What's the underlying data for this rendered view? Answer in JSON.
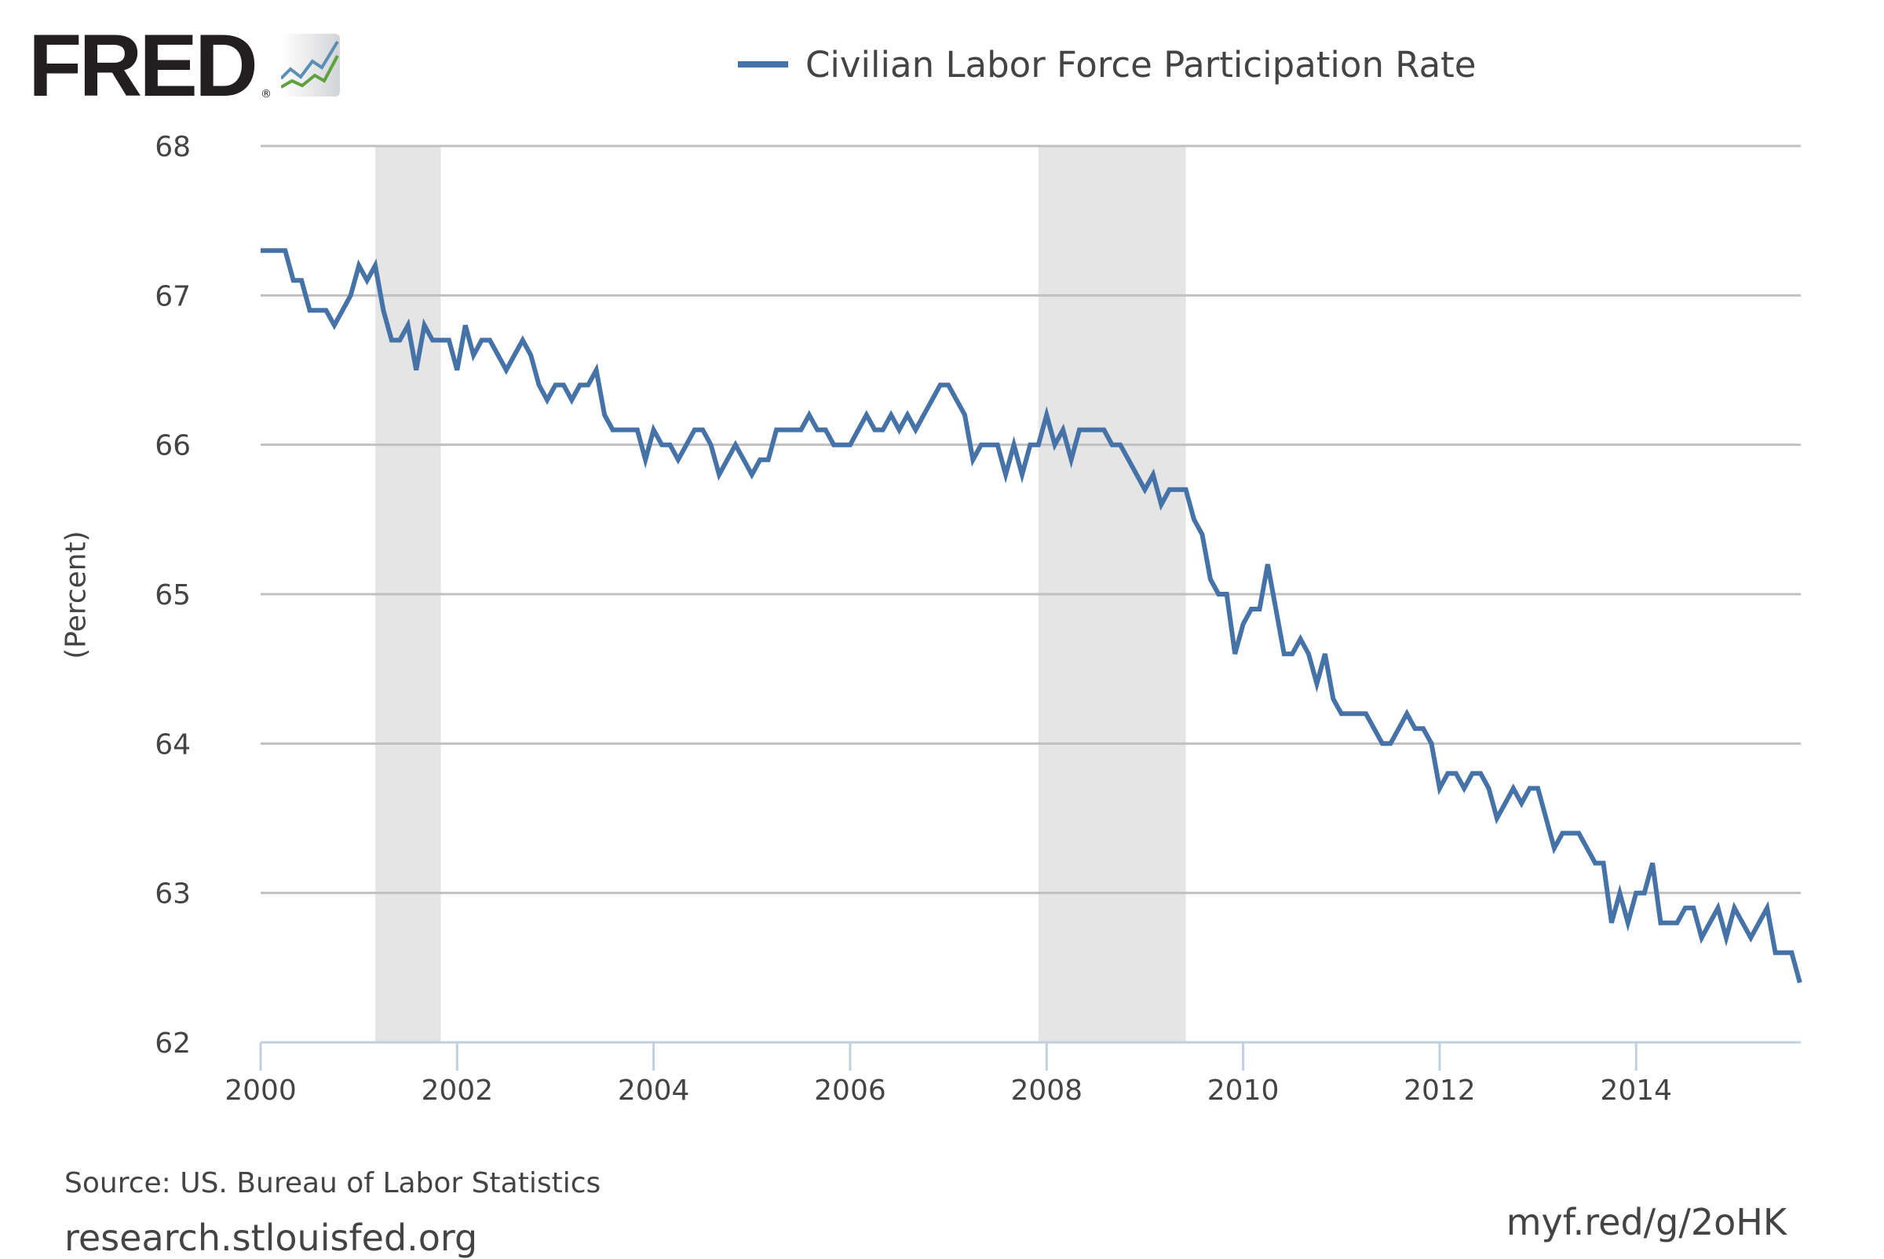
{
  "header": {
    "logo_text": "FRED",
    "logo_registered": "®",
    "logo_icon": "line-chart-icon"
  },
  "legend": {
    "items": [
      {
        "label": "Civilian Labor Force Participation Rate",
        "color": "#4572a7"
      }
    ]
  },
  "footer": {
    "source": "Source: US. Bureau of Labor Statistics",
    "site": "research.stlouisfed.org",
    "shortlink": "myf.red/g/2oHK"
  },
  "colors": {
    "series": "#4572a7",
    "recession": "#e5e5e5",
    "gridline": "#c0c0c0",
    "axis": "#c0d0e0",
    "text": "#444444"
  },
  "chart_data": {
    "type": "line",
    "title": "",
    "xlabel": "",
    "ylabel": "(Percent)",
    "ylim": [
      62,
      68
    ],
    "yticks": [
      "62",
      "63",
      "64",
      "65",
      "66",
      "67",
      "68"
    ],
    "xticks": [
      "2000",
      "2002",
      "2004",
      "2006",
      "2008",
      "2010",
      "2012",
      "2014"
    ],
    "grid": true,
    "legend_position": "top",
    "frequency": "monthly",
    "start": "2000-01",
    "end": "2015-09",
    "recessions": [
      {
        "start": "2001-03",
        "end": "2001-11"
      },
      {
        "start": "2007-12",
        "end": "2009-06"
      }
    ],
    "series": [
      {
        "name": "Civilian Labor Force Participation Rate",
        "values": [
          67.3,
          67.3,
          67.3,
          67.3,
          67.1,
          67.1,
          66.9,
          66.9,
          66.9,
          66.8,
          66.9,
          67.0,
          67.2,
          67.1,
          67.2,
          66.9,
          66.7,
          66.7,
          66.8,
          66.5,
          66.8,
          66.7,
          66.7,
          66.7,
          66.5,
          66.8,
          66.6,
          66.7,
          66.7,
          66.6,
          66.5,
          66.6,
          66.7,
          66.6,
          66.4,
          66.3,
          66.4,
          66.4,
          66.3,
          66.4,
          66.4,
          66.5,
          66.2,
          66.1,
          66.1,
          66.1,
          66.1,
          65.9,
          66.1,
          66.0,
          66.0,
          65.9,
          66.0,
          66.1,
          66.1,
          66.0,
          65.8,
          65.9,
          66.0,
          65.9,
          65.8,
          65.9,
          65.9,
          66.1,
          66.1,
          66.1,
          66.1,
          66.2,
          66.1,
          66.1,
          66.0,
          66.0,
          66.0,
          66.1,
          66.2,
          66.1,
          66.1,
          66.2,
          66.1,
          66.2,
          66.1,
          66.2,
          66.3,
          66.4,
          66.4,
          66.3,
          66.2,
          65.9,
          66.0,
          66.0,
          66.0,
          65.8,
          66.0,
          65.8,
          66.0,
          66.0,
          66.2,
          66.0,
          66.1,
          65.9,
          66.1,
          66.1,
          66.1,
          66.1,
          66.0,
          66.0,
          65.9,
          65.8,
          65.7,
          65.8,
          65.6,
          65.7,
          65.7,
          65.7,
          65.5,
          65.4,
          65.1,
          65.0,
          65.0,
          64.6,
          64.8,
          64.9,
          64.9,
          65.2,
          64.9,
          64.6,
          64.6,
          64.7,
          64.6,
          64.4,
          64.6,
          64.3,
          64.2,
          64.2,
          64.2,
          64.2,
          64.1,
          64.0,
          64.0,
          64.1,
          64.2,
          64.1,
          64.1,
          64.0,
          63.7,
          63.8,
          63.8,
          63.7,
          63.8,
          63.8,
          63.7,
          63.5,
          63.6,
          63.7,
          63.6,
          63.7,
          63.7,
          63.5,
          63.3,
          63.4,
          63.4,
          63.4,
          63.3,
          63.2,
          63.2,
          62.8,
          63.0,
          62.8,
          63.0,
          63.0,
          63.2,
          62.8,
          62.8,
          62.8,
          62.9,
          62.9,
          62.7,
          62.8,
          62.9,
          62.7,
          62.9,
          62.8,
          62.7,
          62.8,
          62.9,
          62.6,
          62.6,
          62.6,
          62.4
        ]
      }
    ]
  }
}
